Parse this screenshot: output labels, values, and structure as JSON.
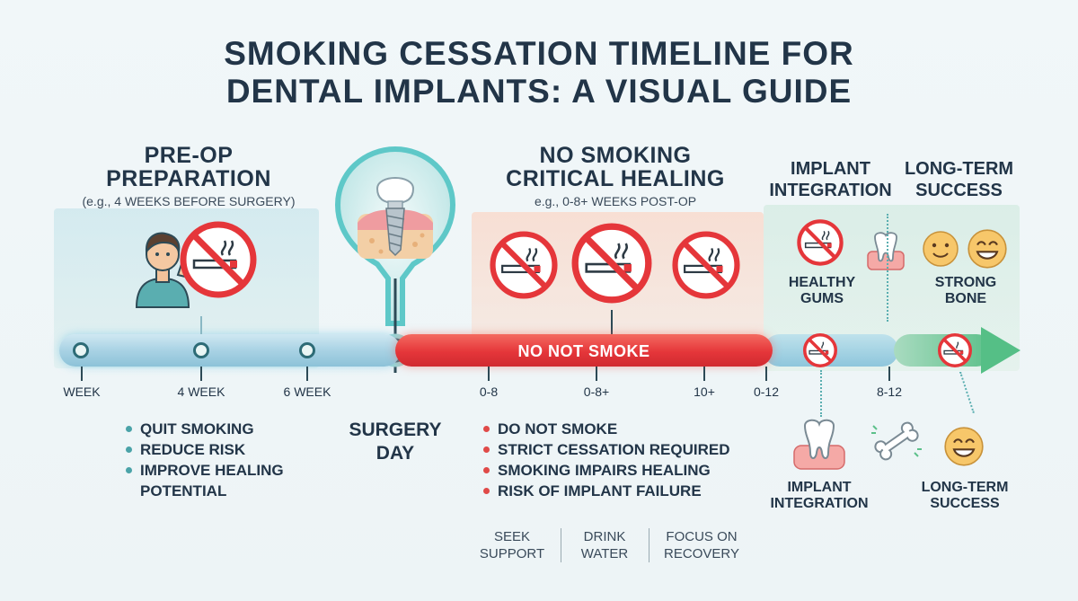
{
  "title": {
    "line1": "SMOKING CESSATION TIMELINE FOR",
    "line2": "DENTAL IMPLANTS: A VISUAL GUIDE"
  },
  "preop": {
    "heading_line1": "PRE-OP",
    "heading_line2": "PREPARATION",
    "subtitle": "(e.g., 4 WEEKS BEFORE SURGERY)",
    "bullets": [
      "QUIT SMOKING",
      "REDUCE RISK",
      "IMPROVE HEALING",
      "POTENTIAL"
    ]
  },
  "critical": {
    "heading_line1": "NO SMOKING",
    "heading_line2": "CRITICAL HEALING",
    "subtitle": "e.g., 0-8+ WEEKS POST-OP",
    "bar_label": "NO NOT SMOKE",
    "bullets": [
      "DO NOT SMOKE",
      "STRICT CESSATION REQUIRED",
      "SMOKING IMPAIRS HEALING",
      "RISK OF IMPLANT FAILURE"
    ]
  },
  "surgery": {
    "label_line1": "SURGERY",
    "label_line2": "DAY"
  },
  "integration": {
    "heading_line1": "IMPLANT",
    "heading_line2": "INTEGRATION",
    "upper_label_line1": "HEALTHY",
    "upper_label_line2": "GUMS",
    "lower_label_line1": "IMPLANT",
    "lower_label_line2": "INTEGRATION"
  },
  "longterm": {
    "heading_line1": "LONG-TERM",
    "heading_line2": "SUCCESS",
    "upper_label_line1": "STRONG",
    "upper_label_line2": "BONE",
    "lower_label_line1": "LONG-TERM",
    "lower_label_line2": "SUCCESS"
  },
  "ticks": [
    "WEEK",
    "4 WEEK",
    "6 WEEK",
    "0-8",
    "0-8+",
    "10+",
    "0-12",
    "8-12"
  ],
  "tips": [
    {
      "line1": "SEEK",
      "line2": "SUPPORT"
    },
    {
      "line1": "DRINK",
      "line2": "WATER"
    },
    {
      "line1": "FOCUS ON",
      "line2": "RECOVERY"
    }
  ],
  "colors": {
    "accent_red": "#e5363a",
    "accent_teal": "#2d6b76",
    "accent_green": "#5cc08a",
    "text_dark": "#223548",
    "bullet_teal": "#4aa3a8",
    "bullet_red": "#e04a48"
  },
  "icons": [
    "person-icon",
    "no-smoking-icon",
    "implant-icon",
    "tooth-icon",
    "bone-icon",
    "smiley-icon"
  ]
}
